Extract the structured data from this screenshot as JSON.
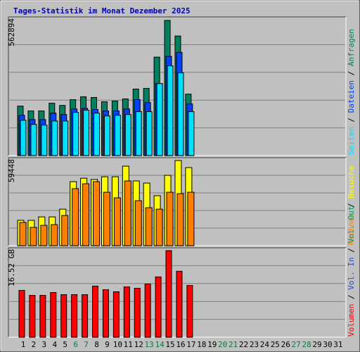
{
  "chart_data": {
    "type": "bar",
    "title": "Tages-Statistik im Monat Dezember 2025",
    "categories": [
      1,
      2,
      3,
      4,
      5,
      6,
      7,
      8,
      9,
      10,
      11,
      12,
      13,
      14,
      15,
      16,
      17,
      18,
      19,
      20,
      21,
      22,
      23,
      24,
      25,
      26,
      27,
      28,
      29,
      30,
      31
    ],
    "category_colors": [
      "#000000",
      "#000000",
      "#000000",
      "#000000",
      "#000000",
      "#008040",
      "#008040",
      "#000000",
      "#000000",
      "#000000",
      "#000000",
      "#000000",
      "#008040",
      "#008040",
      "#000000",
      "#000000",
      "#000000",
      "#000000",
      "#000000",
      "#008040",
      "#008040",
      "#000000",
      "#000000",
      "#000000",
      "#000000",
      "#000000",
      "#008040",
      "#008040",
      "#000000",
      "#000000",
      "#000000"
    ],
    "legend_separator": " / ",
    "grid": true,
    "panels": [
      {
        "ylim": [
          0,
          562894
        ],
        "yticks": [
          562894
        ],
        "series": [
          {
            "name": "Anfragen",
            "color": "#008060",
            "values": [
              206000,
              186000,
              186000,
              218000,
              209000,
              233000,
              245000,
              242000,
              224000,
              227000,
              236000,
              277000,
              280000,
              410000,
              562894,
              498000,
              256000,
              null,
              null,
              null,
              null,
              null,
              null,
              null,
              null,
              null,
              null,
              null,
              null,
              null,
              null
            ]
          },
          {
            "name": "Dateien",
            "color": "#0040ff",
            "values": [
              168000,
              150000,
              150000,
              177000,
              171000,
              194000,
              197000,
              192000,
              186000,
              186000,
              194000,
              233000,
              221000,
              300000,
              413000,
              430000,
              215000,
              null,
              null,
              null,
              null,
              null,
              null,
              null,
              null,
              null,
              null,
              null,
              null,
              null,
              null
            ]
          },
          {
            "name": "Seiten",
            "color": "#00e0ff",
            "values": [
              147000,
              130000,
              127000,
              144000,
              144000,
              180000,
              189000,
              177000,
              165000,
              168000,
              171000,
              183000,
              183000,
              300000,
              374000,
              345000,
              183000,
              null,
              null,
              null,
              null,
              null,
              null,
              null,
              null,
              null,
              null,
              null,
              null,
              null,
              null
            ]
          }
        ]
      },
      {
        "ylim": [
          0,
          59448
        ],
        "yticks": [
          59448
        ],
        "series": [
          {
            "name": "Besuche",
            "color": "#ffff00",
            "values": [
              17700,
              17700,
              20100,
              20100,
              25500,
              44700,
              47100,
              46200,
              48100,
              48100,
              55500,
              45200,
              43700,
              34900,
              49100,
              59448,
              54500,
              null,
              null,
              null,
              null,
              null,
              null,
              null,
              null,
              null,
              null,
              null,
              null,
              null,
              null
            ]
          },
          {
            "name": "Rechner",
            "color": "#ff8000",
            "values": [
              16200,
              12800,
              14200,
              14700,
              21100,
              39800,
              43200,
              44700,
              37300,
              33400,
              45200,
              31400,
              26500,
              25500,
              37300,
              36300,
              37300,
              null,
              null,
              null,
              null,
              null,
              null,
              null,
              null,
              null,
              null,
              null,
              null,
              null,
              null
            ]
          }
        ]
      },
      {
        "ylim": [
          0,
          16.52
        ],
        "yticks": [
          {
            "value": 16.52,
            "label": "16.52 GB"
          }
        ],
        "series": [
          {
            "name": "Volumen",
            "color": "#ff0000",
            "values": [
              8.94,
              7.99,
              7.99,
              8.53,
              8.12,
              8.12,
              8.12,
              9.75,
              9.07,
              8.67,
              9.61,
              9.34,
              10.16,
              11.51,
              16.52,
              12.59,
              9.88,
              null,
              null,
              null,
              null,
              null,
              null,
              null,
              null,
              null,
              null,
              null,
              null,
              null,
              null
            ]
          },
          {
            "name": "Vol. In",
            "color": "#2050d0",
            "values": [
              null,
              null,
              null,
              null,
              null,
              null,
              null,
              null,
              null,
              null,
              null,
              null,
              null,
              null,
              null,
              null,
              null,
              null,
              null,
              null,
              null,
              null,
              null,
              null,
              null,
              null,
              null,
              null,
              null,
              null,
              null
            ]
          },
          {
            "name": "Vol. Out",
            "color": "#00a060",
            "values": [
              null,
              null,
              null,
              null,
              null,
              null,
              null,
              null,
              null,
              null,
              null,
              null,
              null,
              null,
              null,
              null,
              null,
              null,
              null,
              null,
              null,
              null,
              null,
              null,
              null,
              null,
              null,
              null,
              null,
              null,
              null
            ]
          }
        ]
      }
    ]
  }
}
